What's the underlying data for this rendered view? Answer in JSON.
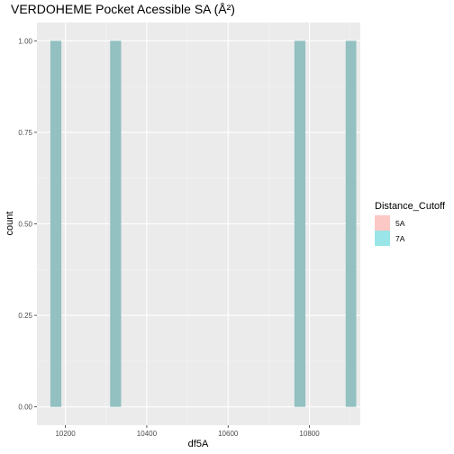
{
  "chart_data": {
    "type": "bar",
    "title": "VERDOHEME Pocket Acessible SA (Å²)",
    "xlabel": "df5A",
    "ylabel": "count",
    "xlim": [
      10130,
      10925
    ],
    "ylim": [
      -0.05,
      1.05
    ],
    "x_ticks": [
      10200,
      10400,
      10600,
      10800
    ],
    "x_tick_labels": [
      "10200",
      "10400",
      "10600",
      "10800"
    ],
    "y_ticks": [
      0.0,
      0.25,
      0.5,
      0.75,
      1.0
    ],
    "y_tick_labels": [
      "0.00",
      "0.25",
      "0.50",
      "0.75",
      "1.00"
    ],
    "grid": true,
    "legend": {
      "title": "Distance_Cutoff",
      "position": "right",
      "entries": [
        {
          "label": "5A",
          "color": "#F8766D"
        },
        {
          "label": "7A",
          "color": "#00BFC4"
        }
      ]
    },
    "series": [
      {
        "name": "7A",
        "color": "#00BFC4",
        "bars": [
          {
            "x_start": 10163,
            "x_end": 10190,
            "count": 1
          },
          {
            "x_start": 10310,
            "x_end": 10337,
            "count": 1
          },
          {
            "x_start": 10763,
            "x_end": 10790,
            "count": 1
          },
          {
            "x_start": 10889,
            "x_end": 10915,
            "count": 1
          }
        ]
      }
    ]
  }
}
